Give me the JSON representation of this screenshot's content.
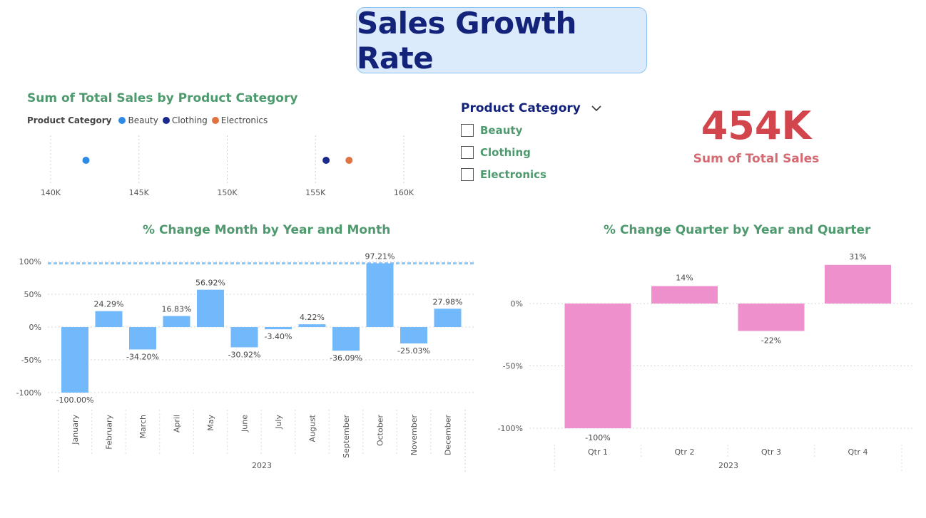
{
  "page_title": "Sales Growth Rate",
  "colors": {
    "title_text": "#14237a",
    "title_card_bg": "#dcebfb",
    "visual_title": "#4e9a6e",
    "kpi": "#d2454c",
    "monthly_bar": "#72b9fc",
    "quarter_bar": "#ee90cc",
    "reference_line": "#8cc6f8"
  },
  "scatter": {
    "title": "Sum of Total Sales by Product Category",
    "legend_title": "Product Category",
    "legend_items": [
      {
        "label": "Beauty",
        "color": "#2f8ae6"
      },
      {
        "label": "Clothing",
        "color": "#1a2a8c"
      },
      {
        "label": "Electronics",
        "color": "#e0733f"
      }
    ]
  },
  "slicer": {
    "title": "Product Category",
    "options": [
      "Beauty",
      "Clothing",
      "Electronics"
    ],
    "dropdown_icon": "chevron-down-icon"
  },
  "kpi": {
    "value": "454K",
    "label": "Sum of Total Sales"
  },
  "monthly": {
    "title": "% Change Month by Year and Month"
  },
  "quarterly": {
    "title": "% Change Quarter by Year and Quarter"
  },
  "chart_data": [
    {
      "type": "scatter",
      "title": "Sum of Total Sales by Product Category",
      "xlim": [
        140000,
        160000
      ],
      "x_ticks": [
        140000,
        145000,
        150000,
        155000,
        160000
      ],
      "x_tick_labels": [
        "140K",
        "145K",
        "150K",
        "155K",
        "160K"
      ],
      "grid": true,
      "legend_placement": "top-left",
      "series": [
        {
          "name": "Beauty",
          "x": 142000,
          "color": "#2f8ae6"
        },
        {
          "name": "Clothing",
          "x": 155600,
          "color": "#1a2a8c"
        },
        {
          "name": "Electronics",
          "x": 156900,
          "color": "#e0733f"
        }
      ]
    },
    {
      "type": "bar",
      "title": "% Change Month by Year and Month",
      "categories": [
        "January",
        "February",
        "March",
        "April",
        "May",
        "June",
        "July",
        "August",
        "September",
        "October",
        "November",
        "December"
      ],
      "values": [
        -100.0,
        24.29,
        -34.2,
        16.83,
        56.92,
        -30.92,
        -3.4,
        4.22,
        -36.09,
        97.21,
        -25.03,
        27.98
      ],
      "data_labels": [
        "-100.00%",
        "24.29%",
        "-34.20%",
        "16.83%",
        "56.92%",
        "-30.92%",
        "-3.40%",
        "4.22%",
        "-36.09%",
        "97.21%",
        "-25.03%",
        "27.98%"
      ],
      "group_label": "2023",
      "ylim": [
        -100,
        100
      ],
      "y_ticks": [
        100,
        50,
        0,
        -50,
        -100
      ],
      "y_tick_labels": [
        "100%",
        "50%",
        "0%",
        "-50%",
        "-100%"
      ],
      "reference_line": 97.21,
      "grid": true,
      "color": "#72b9fc"
    },
    {
      "type": "bar",
      "title": "% Change Quarter by Year and Quarter",
      "categories": [
        "Qtr 1",
        "Qtr 2",
        "Qtr 3",
        "Qtr 4"
      ],
      "values": [
        -100,
        14,
        -22,
        31
      ],
      "data_labels": [
        "-100%",
        "14%",
        "-22%",
        "31%"
      ],
      "group_label": "2023",
      "ylim": [
        -100,
        31
      ],
      "y_ticks": [
        0,
        -50,
        -100
      ],
      "y_tick_labels": [
        "0%",
        "-50%",
        "-100%"
      ],
      "grid": true,
      "color": "#ee90cc"
    }
  ]
}
